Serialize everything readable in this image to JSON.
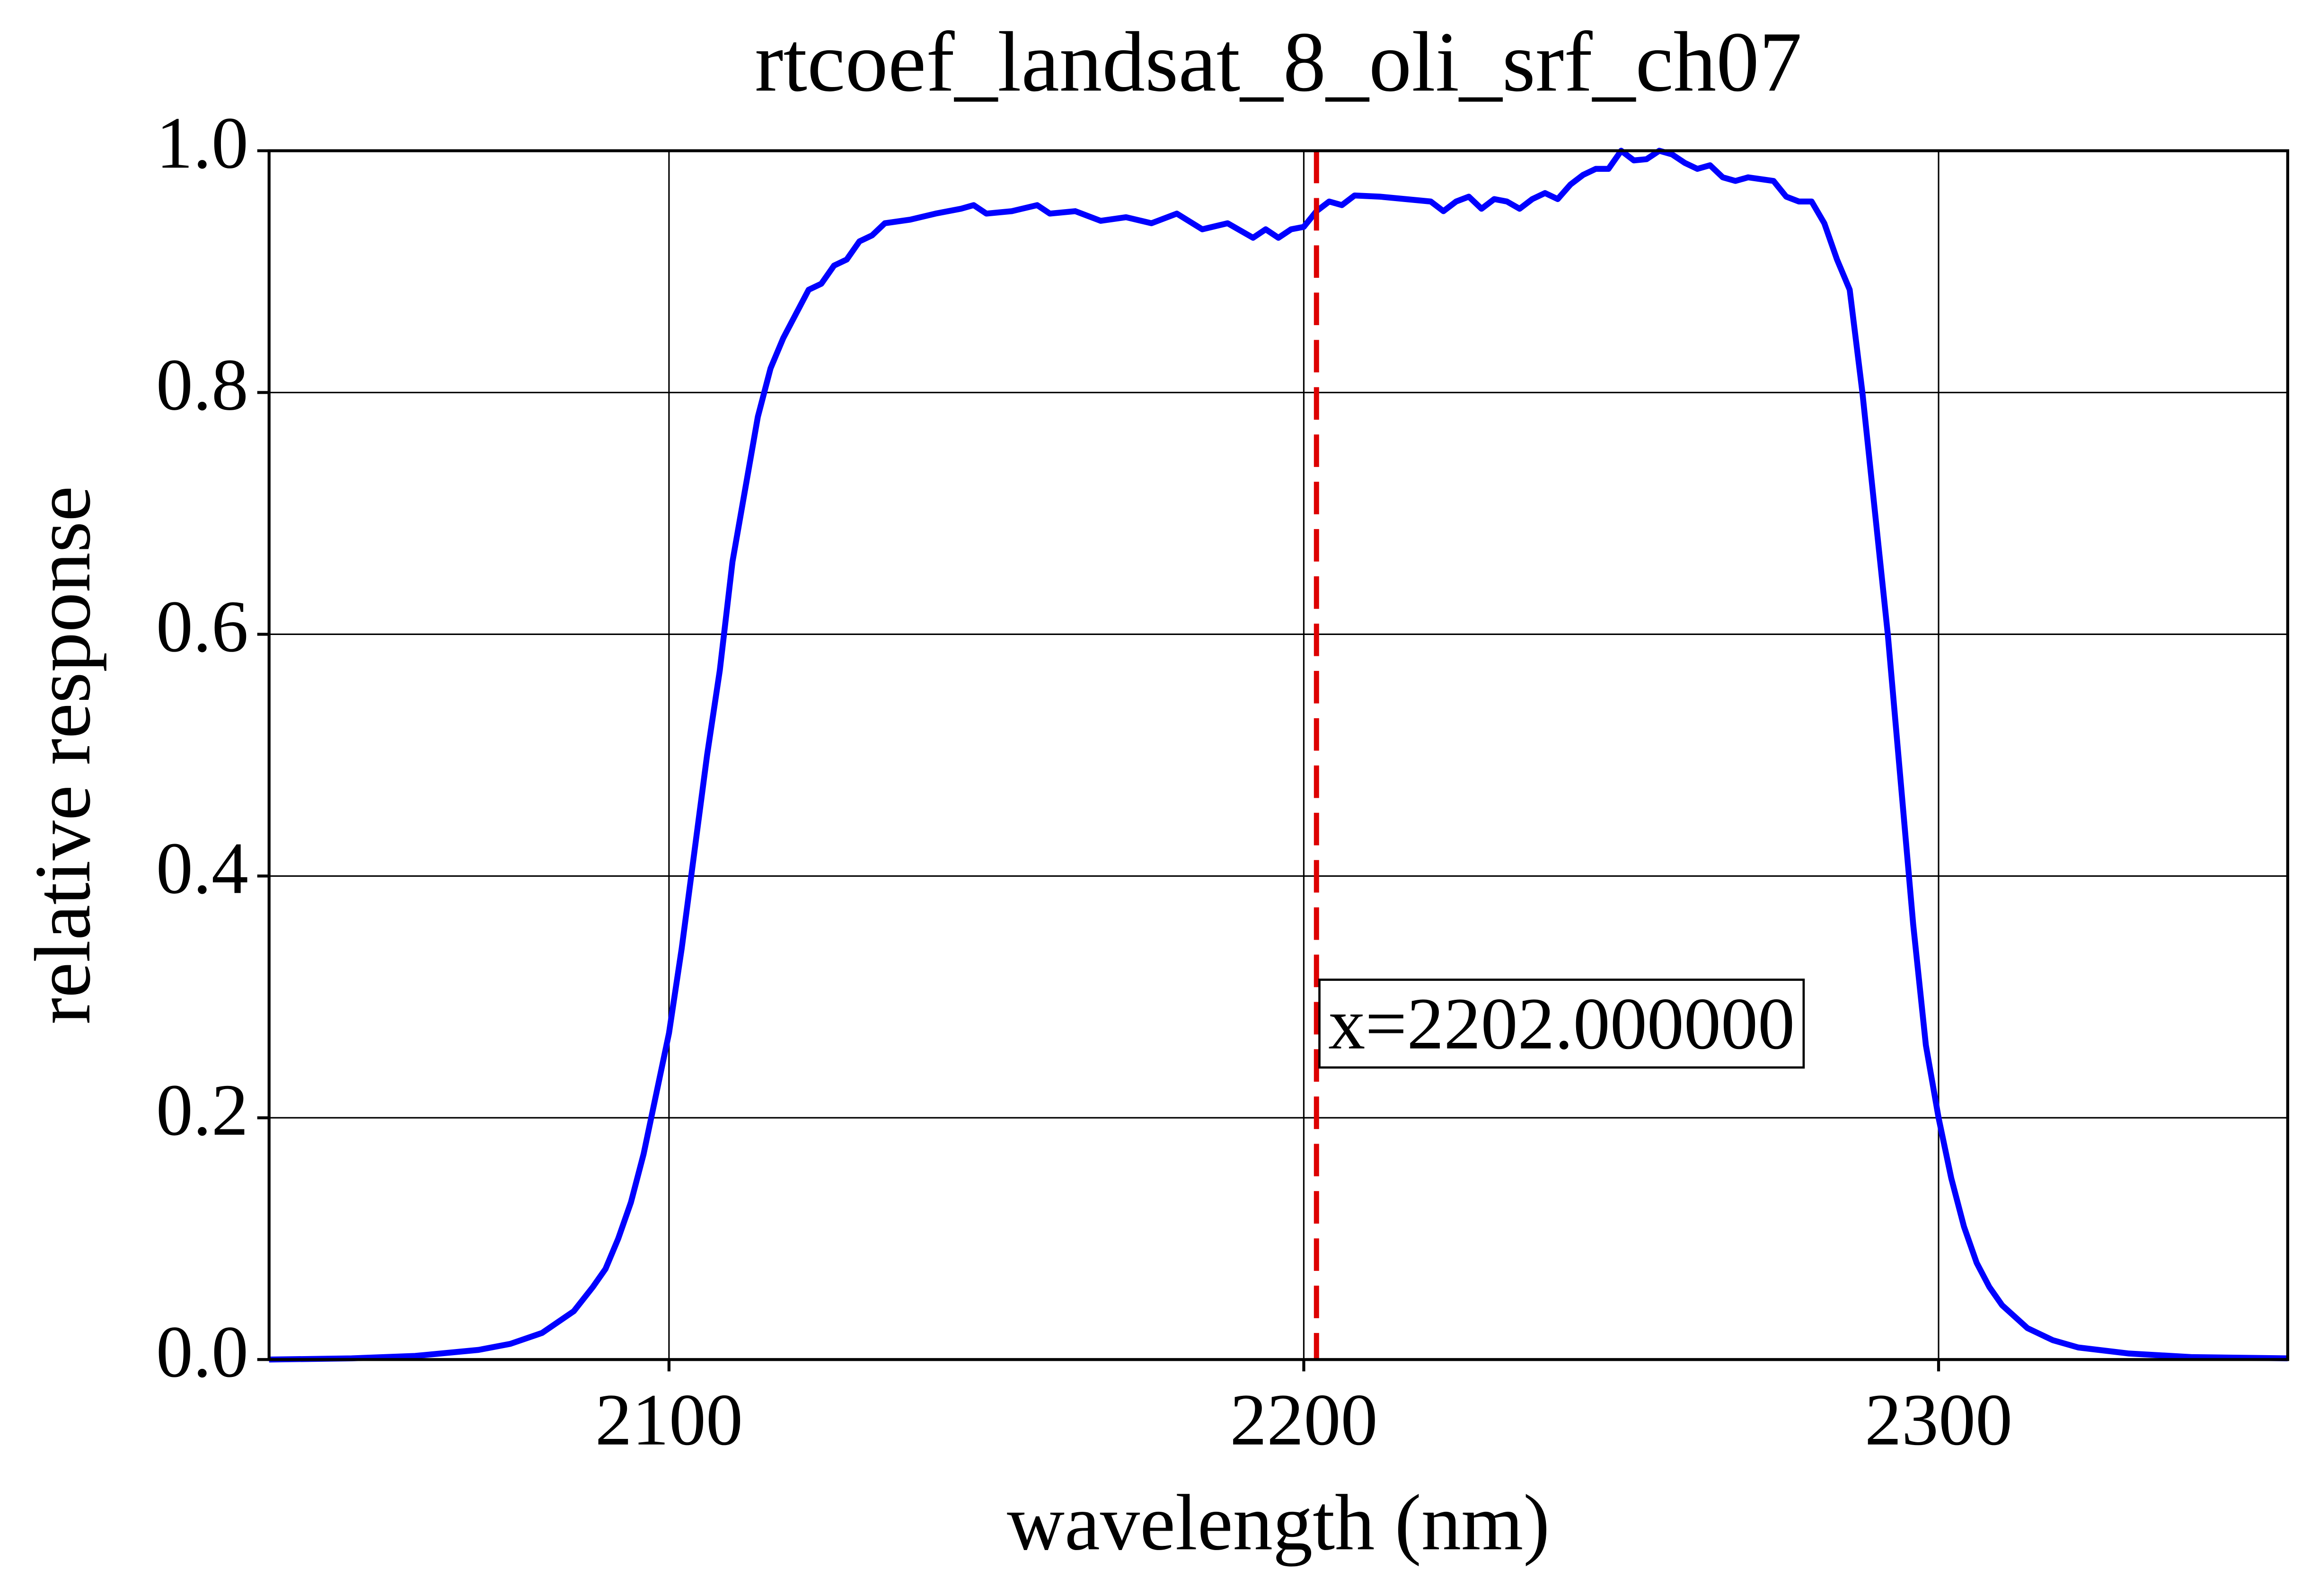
{
  "chart_data": {
    "type": "line",
    "title": "rtcoef_landsat_8_oli_srf_ch07",
    "xlabel": "wavelength (nm)",
    "ylabel": "relative response",
    "x": [
      2037,
      2050,
      2060,
      2070,
      2075,
      2080,
      2085,
      2088,
      2090,
      2092,
      2094,
      2096,
      2098,
      2100,
      2102,
      2104,
      2106,
      2108,
      2110,
      2112,
      2114,
      2116,
      2118,
      2120,
      2122,
      2124,
      2126,
      2128,
      2130,
      2132,
      2134,
      2138,
      2142,
      2146,
      2148,
      2150,
      2154,
      2158,
      2160,
      2164,
      2168,
      2172,
      2176,
      2180,
      2184,
      2188,
      2192,
      2194,
      2196,
      2198,
      2200,
      2202,
      2204,
      2206,
      2208,
      2212,
      2216,
      2220,
      2222,
      2224,
      2226,
      2228,
      2230,
      2232,
      2234,
      2236,
      2238,
      2240,
      2242,
      2244,
      2246,
      2248,
      2250,
      2252,
      2254,
      2256,
      2258,
      2260,
      2262,
      2264,
      2266,
      2268,
      2270,
      2274,
      2276,
      2278,
      2280,
      2282,
      2284,
      2286,
      2288,
      2290,
      2292,
      2294,
      2296,
      2298,
      2300,
      2302,
      2304,
      2306,
      2308,
      2310,
      2314,
      2318,
      2322,
      2330,
      2340,
      2355
    ],
    "values": [
      0,
      0.001,
      0.003,
      0.008,
      0.013,
      0.022,
      0.04,
      0.06,
      0.075,
      0.1,
      0.13,
      0.17,
      0.22,
      0.27,
      0.34,
      0.42,
      0.5,
      0.57,
      0.66,
      0.72,
      0.78,
      0.82,
      0.845,
      0.865,
      0.885,
      0.89,
      0.905,
      0.91,
      0.925,
      0.93,
      0.94,
      0.943,
      0.948,
      0.952,
      0.955,
      0.948,
      0.95,
      0.955,
      0.948,
      0.95,
      0.942,
      0.945,
      0.94,
      0.948,
      0.935,
      0.94,
      0.928,
      0.935,
      0.928,
      0.935,
      0.937,
      0.95,
      0.958,
      0.955,
      0.963,
      0.962,
      0.96,
      0.958,
      0.95,
      0.958,
      0.962,
      0.952,
      0.96,
      0.958,
      0.952,
      0.96,
      0.965,
      0.96,
      0.972,
      0.98,
      0.985,
      0.985,
      1.0,
      0.992,
      0.993,
      1.0,
      0.997,
      0.99,
      0.985,
      0.988,
      0.978,
      0.975,
      0.978,
      0.975,
      0.962,
      0.958,
      0.958,
      0.94,
      0.91,
      0.885,
      0.8,
      0.7,
      0.6,
      0.48,
      0.36,
      0.26,
      0.2,
      0.15,
      0.11,
      0.08,
      0.06,
      0.045,
      0.026,
      0.016,
      0.01,
      0.005,
      0.002,
      0.001
    ],
    "color": "#0000ff",
    "xlim": [
      2037,
      2355
    ],
    "ylim": [
      0,
      1
    ],
    "xticks": [
      2100,
      2200,
      2300
    ],
    "yticks": [
      {
        "value": 0,
        "label": "0.0"
      },
      {
        "value": 0.2,
        "label": "0.2"
      },
      {
        "value": 0.4,
        "label": "0.4"
      },
      {
        "value": 0.6,
        "label": "0.6"
      },
      {
        "value": 0.8,
        "label": "0.8"
      },
      {
        "value": 1,
        "label": "1.0"
      }
    ],
    "grid": true,
    "vline": {
      "x": 2202,
      "label": "x=2202.000000",
      "color": "#dd0000"
    }
  }
}
